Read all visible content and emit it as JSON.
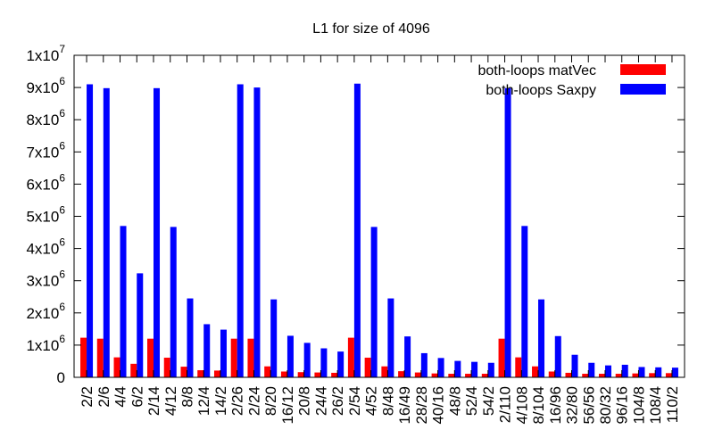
{
  "chart_data": {
    "type": "bar",
    "title": "L1 for size of 4096",
    "xlabel": "",
    "ylabel": "",
    "ylim": [
      0,
      10000000
    ],
    "y_ticks": [
      "0",
      "1x10^6",
      "2x10^6",
      "3x10^6",
      "4x10^6",
      "5x10^6",
      "6x10^6",
      "7x10^6",
      "8x10^6",
      "9x10^6",
      "1x10^7"
    ],
    "y_tick_values": [
      0,
      1000000,
      2000000,
      3000000,
      4000000,
      5000000,
      6000000,
      7000000,
      8000000,
      9000000,
      10000000
    ],
    "legend_position": "top-right",
    "grid": false,
    "categories": [
      "2/2",
      "2/6",
      "4/4",
      "6/2",
      "2/14",
      "4/12",
      "8/8",
      "12/4",
      "14/2",
      "2/26",
      "2/24",
      "8/20",
      "16/12",
      "20/8",
      "24/4",
      "26/2",
      "2/54",
      "4/52",
      "8/48",
      "16/49",
      "28/28",
      "40/16",
      "48/8",
      "52/4",
      "54/2",
      "2/110",
      "4/108",
      "8/104",
      "16/96",
      "32/80",
      "56/56",
      "80/32",
      "96/16",
      "104/8",
      "108/4",
      "110/2"
    ],
    "series": [
      {
        "name": "both-loops matVec",
        "color": "#ff0000",
        "values": [
          1230000,
          1200000,
          620000,
          420000,
          1200000,
          610000,
          330000,
          220000,
          210000,
          1200000,
          1200000,
          340000,
          180000,
          160000,
          150000,
          140000,
          1230000,
          610000,
          340000,
          190000,
          150000,
          120000,
          110000,
          110000,
          110000,
          1200000,
          620000,
          340000,
          180000,
          140000,
          110000,
          110000,
          110000,
          120000,
          130000,
          130000
        ]
      },
      {
        "name": "both-loops Saxpy",
        "color": "#0000ff",
        "values": [
          9100000,
          8980000,
          4700000,
          3230000,
          8980000,
          4670000,
          2450000,
          1650000,
          1480000,
          9100000,
          9000000,
          2420000,
          1290000,
          1070000,
          900000,
          800000,
          9120000,
          4670000,
          2450000,
          1270000,
          750000,
          600000,
          510000,
          480000,
          450000,
          8980000,
          4700000,
          2420000,
          1280000,
          700000,
          450000,
          370000,
          390000,
          320000,
          310000,
          300000
        ]
      }
    ]
  }
}
